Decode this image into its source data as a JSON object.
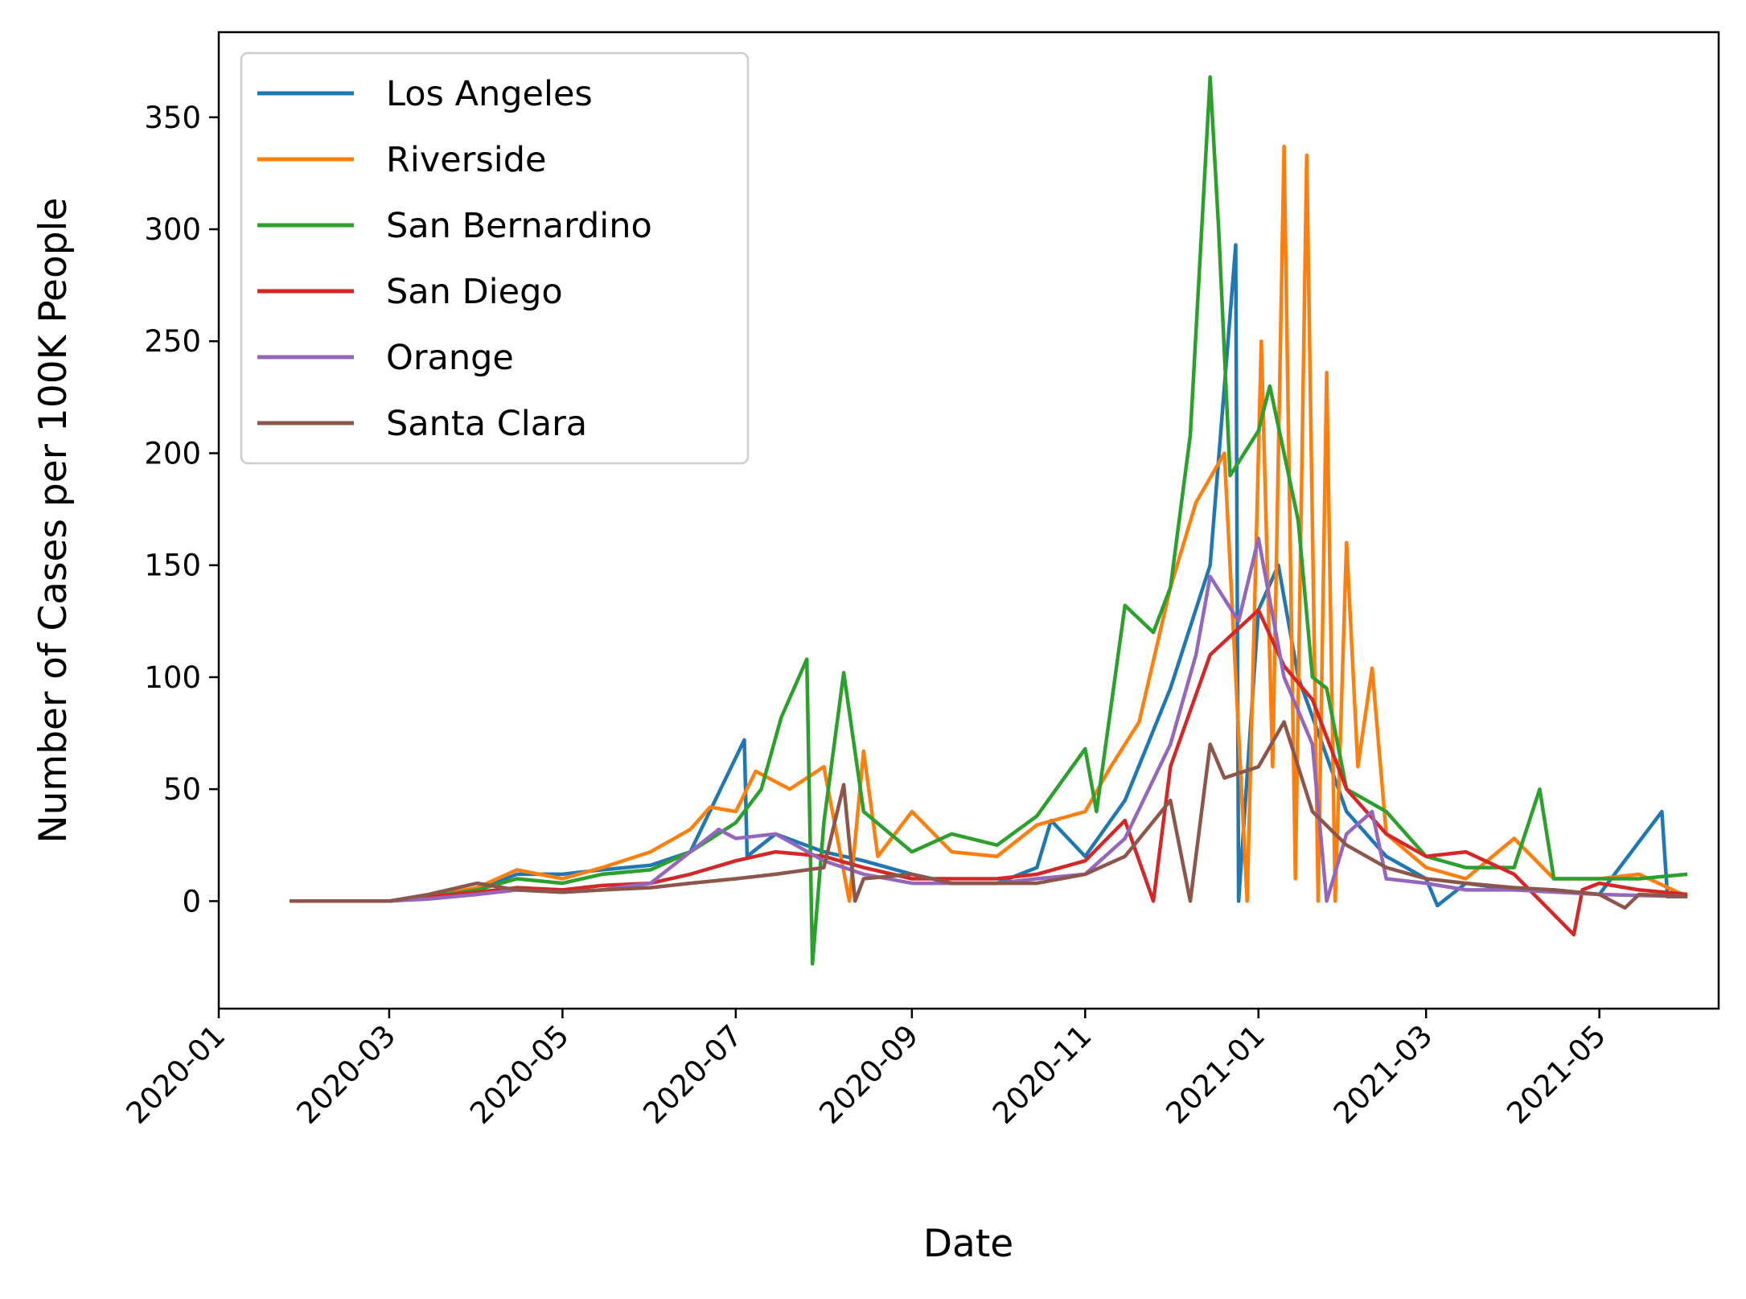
{
  "chart_data": {
    "type": "line",
    "title": "",
    "xlabel": "Date",
    "ylabel": "Number of Cases per 100K People",
    "x_ticks": [
      "2020-01",
      "2020-03",
      "2020-05",
      "2020-07",
      "2020-09",
      "2020-11",
      "2021-01",
      "2021-03",
      "2021-05"
    ],
    "y_ticks": [
      0,
      50,
      100,
      150,
      200,
      250,
      300,
      350
    ],
    "xlim": [
      "2020-01-01",
      "2021-06-12"
    ],
    "ylim": [
      -48,
      388
    ],
    "legend_position": "top-left",
    "grid": false,
    "colors": {
      "Los Angeles": "#1f77b4",
      "Riverside": "#ff7f0e",
      "San Bernardino": "#2ca02c",
      "San Diego": "#d62728",
      "Orange": "#9467bd",
      "Santa Clara": "#8c564b"
    },
    "series": [
      {
        "name": "Los Angeles",
        "points": [
          [
            "2020-01-26",
            0
          ],
          [
            "2020-03-01",
            0
          ],
          [
            "2020-03-15",
            2
          ],
          [
            "2020-04-01",
            5
          ],
          [
            "2020-04-15",
            12
          ],
          [
            "2020-05-01",
            12
          ],
          [
            "2020-05-15",
            14
          ],
          [
            "2020-06-01",
            16
          ],
          [
            "2020-06-15",
            22
          ],
          [
            "2020-07-04",
            72
          ],
          [
            "2020-07-05",
            20
          ],
          [
            "2020-07-15",
            30
          ],
          [
            "2020-08-01",
            22
          ],
          [
            "2020-08-15",
            18
          ],
          [
            "2020-09-01",
            12
          ],
          [
            "2020-09-15",
            8
          ],
          [
            "2020-10-01",
            8
          ],
          [
            "2020-10-15",
            15
          ],
          [
            "2020-10-20",
            36
          ],
          [
            "2020-11-01",
            20
          ],
          [
            "2020-11-15",
            45
          ],
          [
            "2020-12-01",
            95
          ],
          [
            "2020-12-15",
            150
          ],
          [
            "2020-12-24",
            293
          ],
          [
            "2020-12-25",
            0
          ],
          [
            "2021-01-01",
            130
          ],
          [
            "2021-01-08",
            150
          ],
          [
            "2021-01-15",
            100
          ],
          [
            "2021-02-01",
            40
          ],
          [
            "2021-02-15",
            20
          ],
          [
            "2021-03-01",
            10
          ],
          [
            "2021-03-05",
            -2
          ],
          [
            "2021-03-15",
            8
          ],
          [
            "2021-04-01",
            5
          ],
          [
            "2021-04-15",
            5
          ],
          [
            "2021-05-01",
            3
          ],
          [
            "2021-05-23",
            40
          ],
          [
            "2021-05-25",
            2
          ],
          [
            "2021-06-01",
            2
          ]
        ]
      },
      {
        "name": "Riverside",
        "points": [
          [
            "2020-01-26",
            0
          ],
          [
            "2020-03-01",
            0
          ],
          [
            "2020-03-15",
            2
          ],
          [
            "2020-04-01",
            6
          ],
          [
            "2020-04-15",
            14
          ],
          [
            "2020-05-01",
            10
          ],
          [
            "2020-05-15",
            15
          ],
          [
            "2020-06-01",
            22
          ],
          [
            "2020-06-15",
            32
          ],
          [
            "2020-06-22",
            42
          ],
          [
            "2020-07-01",
            40
          ],
          [
            "2020-07-08",
            58
          ],
          [
            "2020-07-20",
            50
          ],
          [
            "2020-08-01",
            60
          ],
          [
            "2020-08-10",
            0
          ],
          [
            "2020-08-15",
            67
          ],
          [
            "2020-08-20",
            20
          ],
          [
            "2020-09-01",
            40
          ],
          [
            "2020-09-15",
            22
          ],
          [
            "2020-10-01",
            20
          ],
          [
            "2020-10-15",
            34
          ],
          [
            "2020-11-01",
            40
          ],
          [
            "2020-11-10",
            60
          ],
          [
            "2020-11-20",
            80
          ],
          [
            "2020-12-01",
            140
          ],
          [
            "2020-12-10",
            178
          ],
          [
            "2020-12-20",
            200
          ],
          [
            "2020-12-28",
            0
          ],
          [
            "2021-01-02",
            250
          ],
          [
            "2021-01-06",
            60
          ],
          [
            "2021-01-10",
            337
          ],
          [
            "2021-01-14",
            10
          ],
          [
            "2021-01-18",
            333
          ],
          [
            "2021-01-22",
            0
          ],
          [
            "2021-01-25",
            236
          ],
          [
            "2021-01-28",
            0
          ],
          [
            "2021-02-01",
            160
          ],
          [
            "2021-02-05",
            60
          ],
          [
            "2021-02-10",
            104
          ],
          [
            "2021-02-15",
            30
          ],
          [
            "2021-03-01",
            15
          ],
          [
            "2021-03-15",
            10
          ],
          [
            "2021-04-01",
            28
          ],
          [
            "2021-04-15",
            10
          ],
          [
            "2021-05-01",
            10
          ],
          [
            "2021-05-15",
            12
          ],
          [
            "2021-06-01",
            2
          ]
        ]
      },
      {
        "name": "San Bernardino",
        "points": [
          [
            "2020-01-26",
            0
          ],
          [
            "2020-03-01",
            0
          ],
          [
            "2020-03-15",
            2
          ],
          [
            "2020-04-01",
            5
          ],
          [
            "2020-04-15",
            10
          ],
          [
            "2020-05-01",
            8
          ],
          [
            "2020-05-15",
            12
          ],
          [
            "2020-06-01",
            14
          ],
          [
            "2020-06-15",
            22
          ],
          [
            "2020-07-01",
            35
          ],
          [
            "2020-07-10",
            50
          ],
          [
            "2020-07-17",
            82
          ],
          [
            "2020-07-26",
            108
          ],
          [
            "2020-07-28",
            -28
          ],
          [
            "2020-08-01",
            35
          ],
          [
            "2020-08-08",
            102
          ],
          [
            "2020-08-15",
            40
          ],
          [
            "2020-09-01",
            22
          ],
          [
            "2020-09-15",
            30
          ],
          [
            "2020-10-01",
            25
          ],
          [
            "2020-10-15",
            38
          ],
          [
            "2020-11-01",
            68
          ],
          [
            "2020-11-05",
            40
          ],
          [
            "2020-11-15",
            132
          ],
          [
            "2020-11-25",
            120
          ],
          [
            "2020-12-01",
            140
          ],
          [
            "2020-12-08",
            208
          ],
          [
            "2020-12-15",
            368
          ],
          [
            "2020-12-18",
            300
          ],
          [
            "2020-12-22",
            190
          ],
          [
            "2021-01-01",
            210
          ],
          [
            "2021-01-05",
            230
          ],
          [
            "2021-01-10",
            200
          ],
          [
            "2021-01-15",
            170
          ],
          [
            "2021-01-20",
            100
          ],
          [
            "2021-01-25",
            95
          ],
          [
            "2021-02-01",
            50
          ],
          [
            "2021-02-15",
            40
          ],
          [
            "2021-03-01",
            20
          ],
          [
            "2021-03-15",
            15
          ],
          [
            "2021-04-01",
            15
          ],
          [
            "2021-04-10",
            50
          ],
          [
            "2021-04-15",
            10
          ],
          [
            "2021-05-01",
            10
          ],
          [
            "2021-05-15",
            10
          ],
          [
            "2021-06-01",
            12
          ]
        ]
      },
      {
        "name": "San Diego",
        "points": [
          [
            "2020-01-26",
            0
          ],
          [
            "2020-03-01",
            0
          ],
          [
            "2020-03-15",
            2
          ],
          [
            "2020-04-01",
            4
          ],
          [
            "2020-04-15",
            6
          ],
          [
            "2020-05-01",
            5
          ],
          [
            "2020-05-15",
            7
          ],
          [
            "2020-06-01",
            8
          ],
          [
            "2020-06-15",
            12
          ],
          [
            "2020-07-01",
            18
          ],
          [
            "2020-07-15",
            22
          ],
          [
            "2020-08-01",
            20
          ],
          [
            "2020-08-15",
            15
          ],
          [
            "2020-09-01",
            10
          ],
          [
            "2020-09-15",
            10
          ],
          [
            "2020-10-01",
            10
          ],
          [
            "2020-10-15",
            12
          ],
          [
            "2020-11-01",
            18
          ],
          [
            "2020-11-15",
            36
          ],
          [
            "2020-11-25",
            0
          ],
          [
            "2020-12-01",
            60
          ],
          [
            "2020-12-15",
            110
          ],
          [
            "2021-01-01",
            130
          ],
          [
            "2021-01-10",
            105
          ],
          [
            "2021-01-20",
            90
          ],
          [
            "2021-02-01",
            50
          ],
          [
            "2021-02-15",
            30
          ],
          [
            "2021-03-01",
            20
          ],
          [
            "2021-03-15",
            22
          ],
          [
            "2021-04-01",
            12
          ],
          [
            "2021-04-22",
            -15
          ],
          [
            "2021-04-25",
            5
          ],
          [
            "2021-05-01",
            8
          ],
          [
            "2021-05-15",
            5
          ],
          [
            "2021-06-01",
            3
          ]
        ]
      },
      {
        "name": "Orange",
        "points": [
          [
            "2020-01-26",
            0
          ],
          [
            "2020-03-01",
            0
          ],
          [
            "2020-03-15",
            1
          ],
          [
            "2020-04-01",
            3
          ],
          [
            "2020-04-15",
            5
          ],
          [
            "2020-05-01",
            4
          ],
          [
            "2020-05-15",
            5
          ],
          [
            "2020-06-01",
            8
          ],
          [
            "2020-06-15",
            22
          ],
          [
            "2020-06-25",
            32
          ],
          [
            "2020-07-01",
            28
          ],
          [
            "2020-07-15",
            30
          ],
          [
            "2020-08-01",
            18
          ],
          [
            "2020-08-15",
            12
          ],
          [
            "2020-09-01",
            8
          ],
          [
            "2020-09-15",
            8
          ],
          [
            "2020-10-01",
            8
          ],
          [
            "2020-10-15",
            10
          ],
          [
            "2020-11-01",
            12
          ],
          [
            "2020-11-15",
            28
          ],
          [
            "2020-12-01",
            70
          ],
          [
            "2020-12-10",
            110
          ],
          [
            "2020-12-15",
            145
          ],
          [
            "2020-12-25",
            125
          ],
          [
            "2021-01-01",
            162
          ],
          [
            "2021-01-10",
            100
          ],
          [
            "2021-01-20",
            70
          ],
          [
            "2021-01-25",
            0
          ],
          [
            "2021-02-01",
            30
          ],
          [
            "2021-02-10",
            40
          ],
          [
            "2021-02-15",
            10
          ],
          [
            "2021-03-01",
            8
          ],
          [
            "2021-03-15",
            5
          ],
          [
            "2021-04-01",
            5
          ],
          [
            "2021-05-01",
            3
          ],
          [
            "2021-06-01",
            2
          ]
        ]
      },
      {
        "name": "Santa Clara",
        "points": [
          [
            "2020-01-26",
            0
          ],
          [
            "2020-03-01",
            0
          ],
          [
            "2020-03-15",
            3
          ],
          [
            "2020-04-01",
            8
          ],
          [
            "2020-04-15",
            5
          ],
          [
            "2020-05-01",
            4
          ],
          [
            "2020-05-15",
            5
          ],
          [
            "2020-06-01",
            6
          ],
          [
            "2020-06-15",
            8
          ],
          [
            "2020-07-01",
            10
          ],
          [
            "2020-07-15",
            12
          ],
          [
            "2020-08-01",
            15
          ],
          [
            "2020-08-08",
            52
          ],
          [
            "2020-08-12",
            0
          ],
          [
            "2020-08-15",
            10
          ],
          [
            "2020-09-01",
            12
          ],
          [
            "2020-09-15",
            8
          ],
          [
            "2020-10-01",
            8
          ],
          [
            "2020-10-15",
            8
          ],
          [
            "2020-11-01",
            12
          ],
          [
            "2020-11-15",
            20
          ],
          [
            "2020-12-01",
            45
          ],
          [
            "2020-12-08",
            0
          ],
          [
            "2020-12-15",
            70
          ],
          [
            "2020-12-20",
            55
          ],
          [
            "2021-01-01",
            60
          ],
          [
            "2021-01-10",
            80
          ],
          [
            "2021-01-20",
            40
          ],
          [
            "2021-02-01",
            25
          ],
          [
            "2021-02-15",
            15
          ],
          [
            "2021-03-01",
            10
          ],
          [
            "2021-03-15",
            8
          ],
          [
            "2021-04-01",
            6
          ],
          [
            "2021-04-15",
            5
          ],
          [
            "2021-05-01",
            3
          ],
          [
            "2021-05-10",
            -3
          ],
          [
            "2021-05-15",
            3
          ],
          [
            "2021-06-01",
            2
          ]
        ]
      }
    ]
  }
}
